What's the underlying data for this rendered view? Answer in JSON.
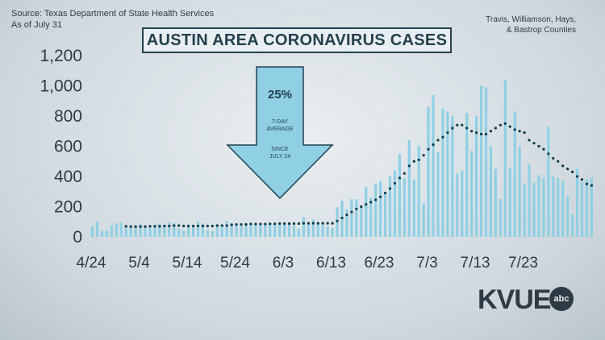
{
  "source_line1": "Source: Texas Department of State Health Services",
  "source_line2": "As of July 31",
  "counties_line1": "Travis, Williamson, Hays,",
  "counties_line2": "& Bastrop Counties",
  "logo": "KVUE",
  "logo_badge": "abc",
  "arrow": {
    "percent": "25%",
    "line1": "7-DAY",
    "line2": "AVERAGE",
    "line3": "SINCE",
    "line4": "JULY 24"
  },
  "colors": {
    "bars": "#8fd0e4",
    "line": "#0f3a45",
    "arrow": "#8fd0e4",
    "title_border": "#24414f"
  },
  "chart_data": {
    "type": "bar",
    "title": "AUSTIN AREA CORONAVIRUS CASES",
    "xlabel": "",
    "ylabel": "",
    "ylim": [
      0,
      1200
    ],
    "yticks": [
      "0",
      "200",
      "400",
      "600",
      "800",
      "1,000",
      "1,200"
    ],
    "yticks_values": [
      0,
      200,
      400,
      600,
      800,
      1000,
      1200
    ],
    "xticks": [
      "4/24",
      "5/4",
      "5/14",
      "5/24",
      "6/3",
      "6/13",
      "6/23",
      "7/3",
      "7/13",
      "7/23"
    ],
    "start_date": "4/24",
    "grid": false,
    "series": [
      {
        "type": "bar",
        "values": [
          70,
          100,
          40,
          40,
          75,
          90,
          95,
          70,
          70,
          60,
          85,
          60,
          60,
          70,
          90,
          80,
          95,
          90,
          55,
          40,
          80,
          70,
          100,
          90,
          45,
          40,
          75,
          80,
          105,
          90,
          80,
          70,
          95,
          95,
          85,
          80,
          85,
          90,
          80,
          95,
          90,
          95,
          75,
          55,
          130,
          85,
          115,
          90,
          80,
          70,
          60,
          195,
          240,
          180,
          250,
          250,
          200,
          330,
          260,
          350,
          370,
          290,
          400,
          440,
          550,
          390,
          640,
          380,
          600,
          220,
          860,
          940,
          560,
          850,
          830,
          800,
          420,
          440,
          820,
          570,
          800,
          1000,
          990,
          600,
          450,
          250,
          1040,
          460,
          830,
          600,
          350,
          480,
          360,
          410,
          390,
          730,
          400,
          390,
          370,
          270,
          150,
          450,
          360,
          380,
          390
        ]
      },
      {
        "type": "line",
        "values": [
          null,
          null,
          null,
          null,
          null,
          null,
          null,
          70,
          68,
          68,
          68,
          68,
          70,
          70,
          70,
          72,
          72,
          75,
          75,
          72,
          72,
          72,
          72,
          72,
          72,
          72,
          75,
          75,
          75,
          80,
          82,
          82,
          82,
          85,
          85,
          85,
          85,
          87,
          87,
          88,
          88,
          88,
          88,
          88,
          90,
          90,
          90,
          90,
          90,
          90,
          90,
          105,
          125,
          145,
          165,
          185,
          200,
          215,
          230,
          245,
          265,
          290,
          320,
          355,
          390,
          420,
          470,
          500,
          510,
          540,
          580,
          610,
          640,
          660,
          690,
          720,
          740,
          740,
          720,
          700,
          690,
          680,
          680,
          700,
          720,
          740,
          750,
          730,
          710,
          700,
          690,
          640,
          620,
          600,
          580,
          550,
          520,
          500,
          470,
          450,
          430,
          400,
          380,
          350,
          340
        ]
      }
    ]
  }
}
